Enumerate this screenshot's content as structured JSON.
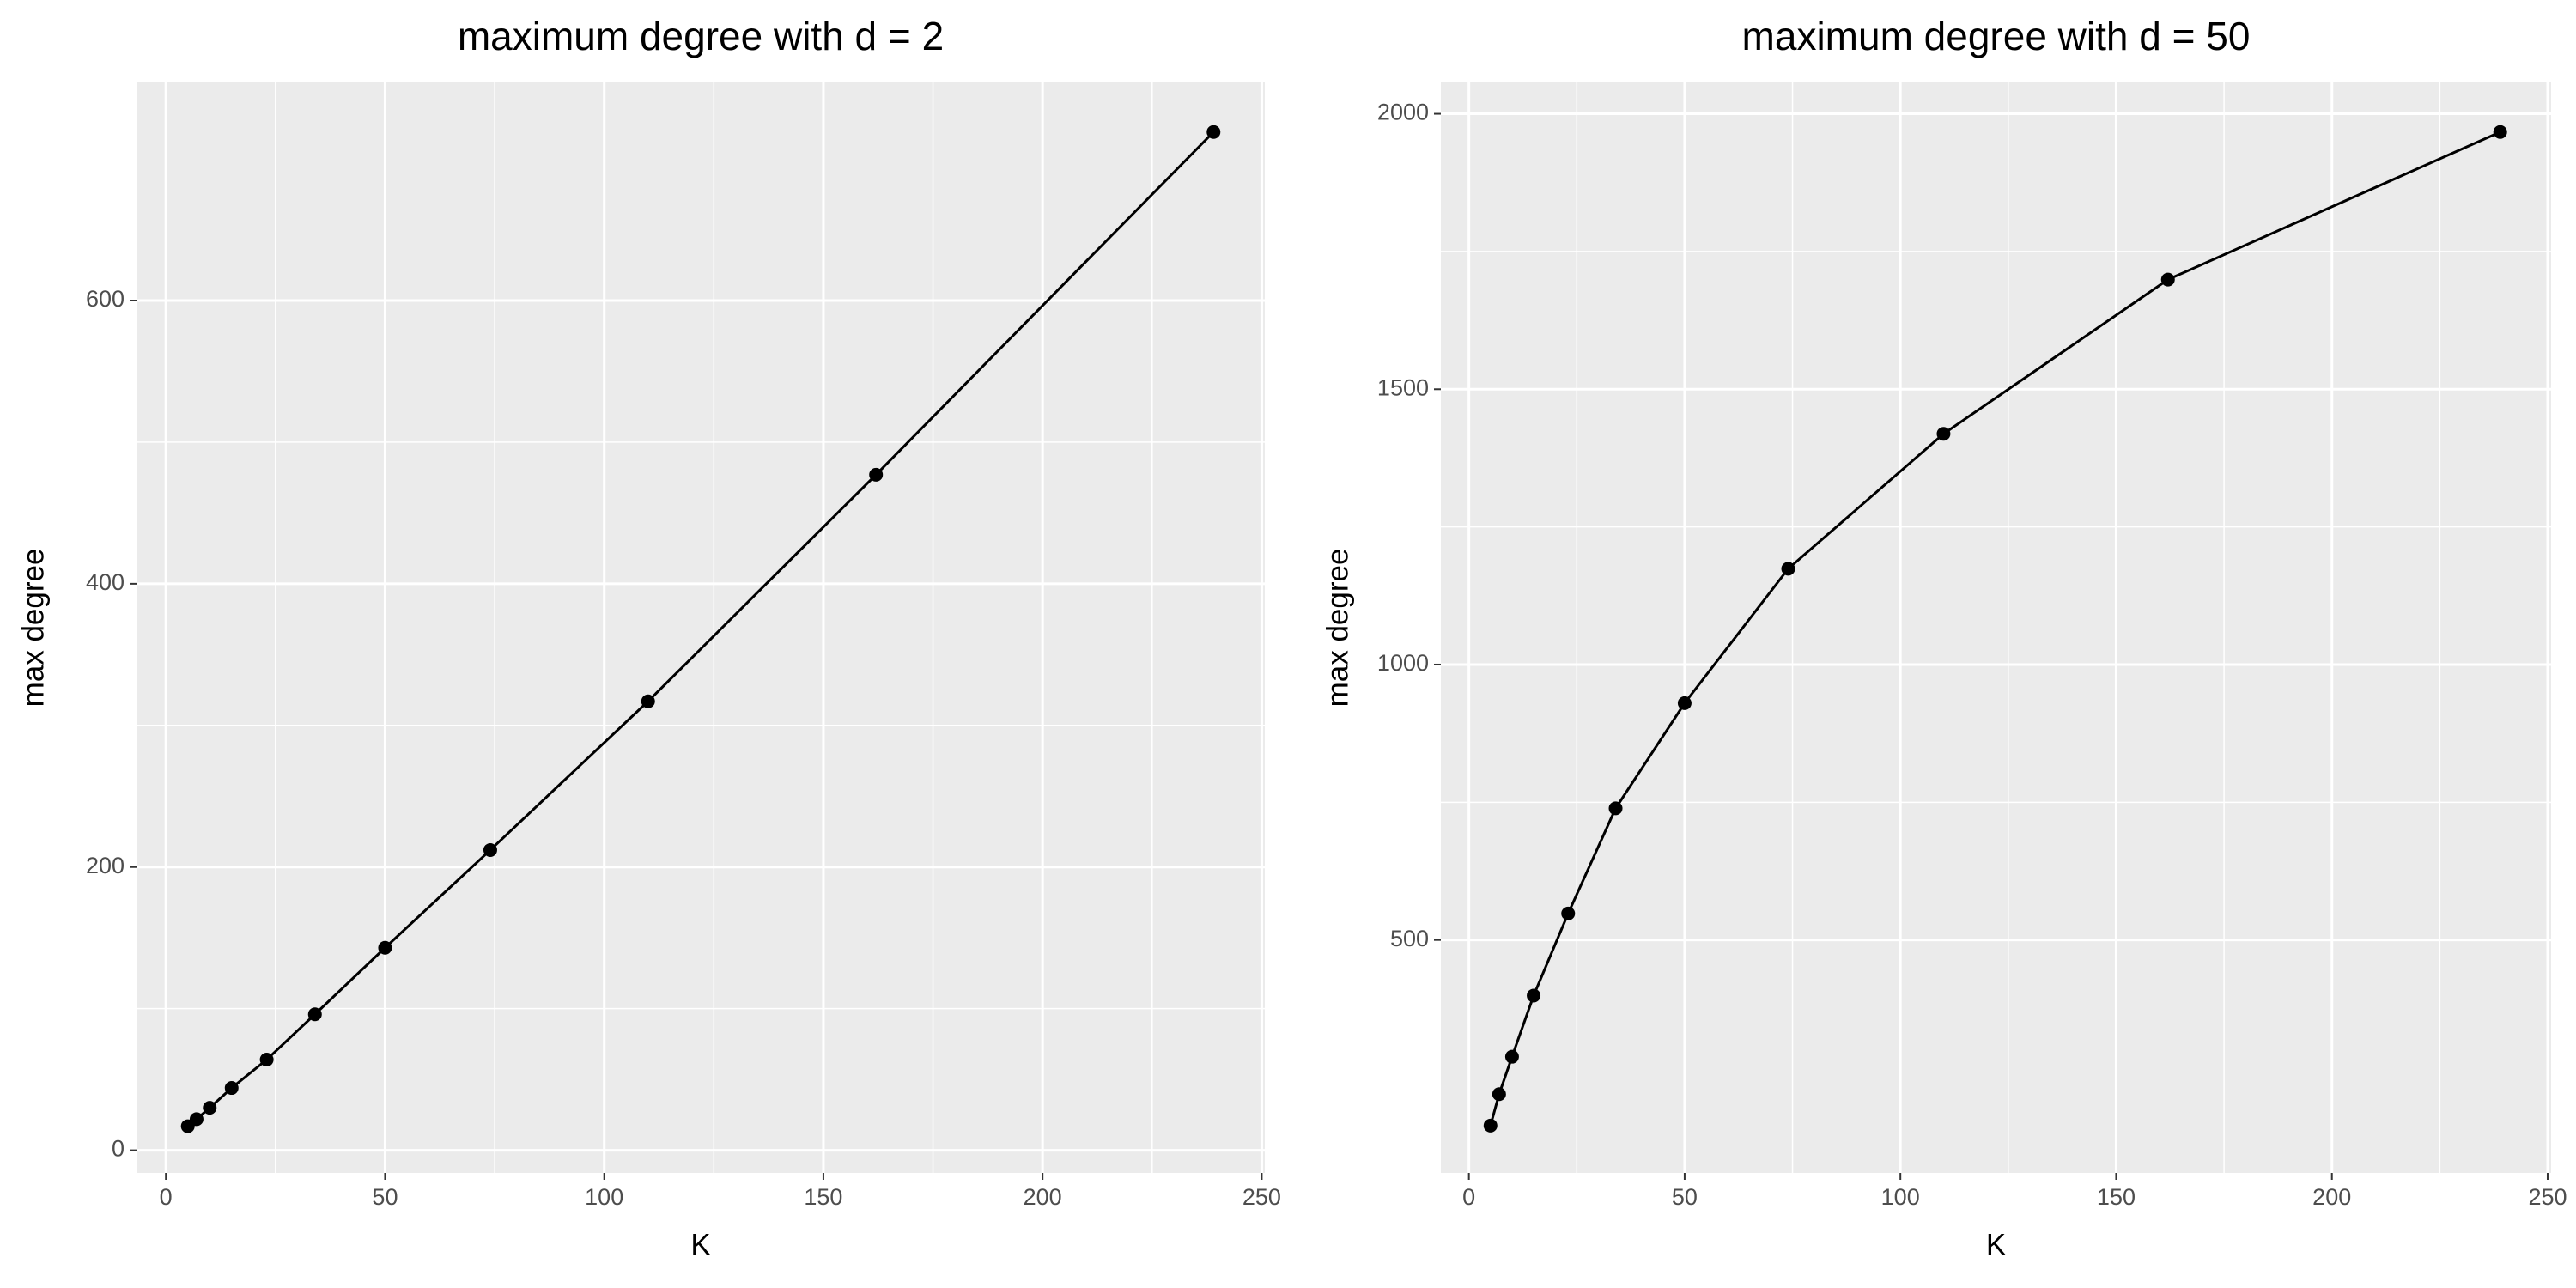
{
  "chart_data": [
    {
      "type": "line",
      "title": "maximum degree with d = 2",
      "x_label": "K",
      "y_label": "max degree",
      "x": [
        5,
        7,
        10,
        15,
        23,
        34,
        50,
        74,
        110,
        162,
        239
      ],
      "values": [
        17,
        22,
        30,
        44,
        64,
        96,
        143,
        212,
        317,
        477,
        719
      ],
      "color": "#000000",
      "xlim": [
        -6.7,
        250.7
      ],
      "xticks": [
        0,
        50,
        100,
        150,
        200,
        250
      ],
      "ylim": [
        -16,
        754
      ],
      "yticks": [
        0,
        200,
        400,
        600
      ],
      "grid": true,
      "minor_grid": true
    },
    {
      "type": "line",
      "title": "maximum degree with d = 50",
      "x_label": "K",
      "y_label": "max degree",
      "x": [
        5,
        7,
        10,
        15,
        23,
        34,
        50,
        74,
        110,
        162,
        239
      ],
      "values": [
        163,
        220,
        288,
        399,
        548,
        739,
        930,
        1174,
        1419,
        1699,
        1967
      ],
      "color": "#000000",
      "xlim": [
        -6.5,
        250.8
      ],
      "xticks": [
        0,
        50,
        100,
        150,
        200,
        250
      ],
      "ylim": [
        77,
        2057
      ],
      "yticks": [
        500,
        1000,
        1500,
        2000
      ],
      "grid": true,
      "minor_grid": true
    }
  ]
}
